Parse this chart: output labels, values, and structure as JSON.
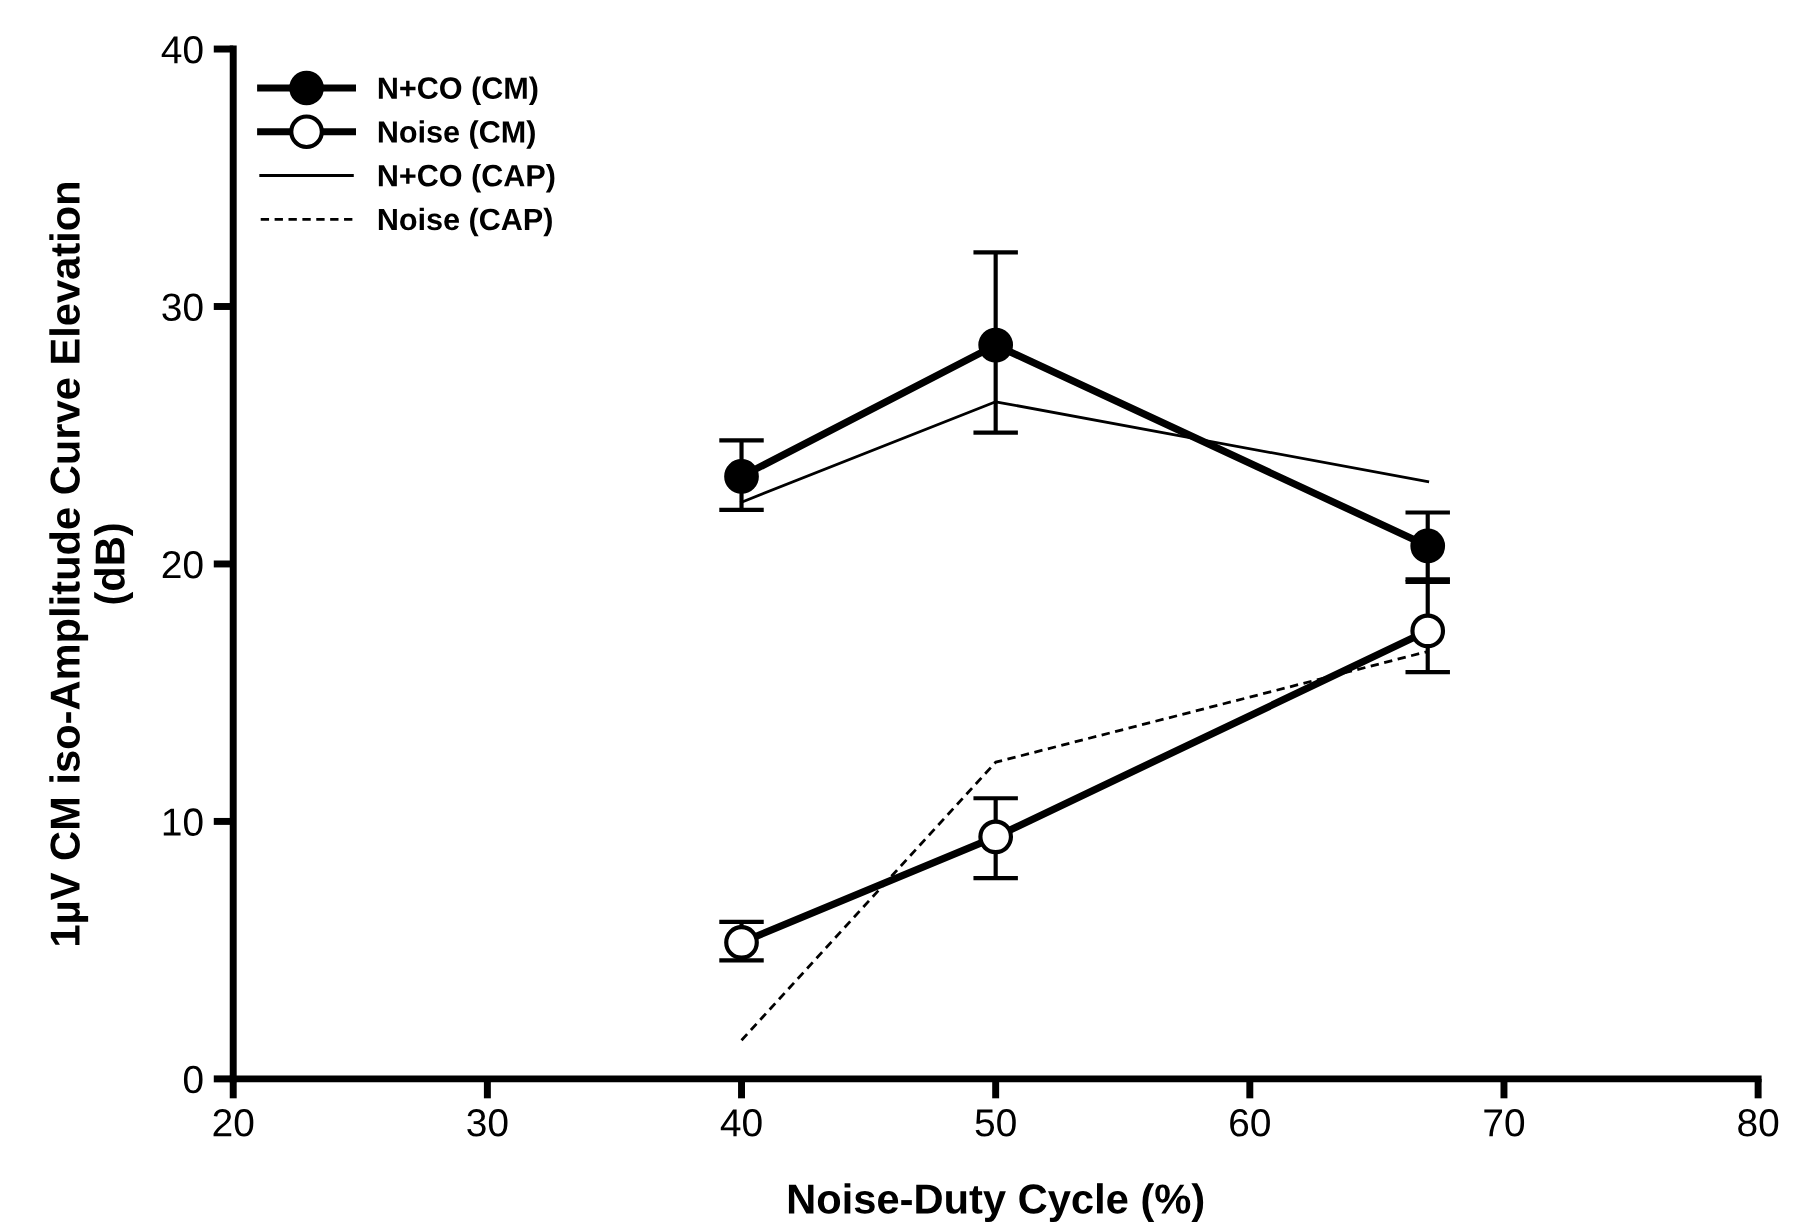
{
  "chart_data": {
    "type": "line",
    "xlabel": "Noise-Duty Cycle (%)",
    "ylabel": "1µV CM iso-Amplitude Curve Elevation\n(dB)",
    "x": [
      40,
      50,
      67
    ],
    "series": [
      {
        "name": "N+CO (CM)",
        "color": "#000000",
        "values": [
          23.4,
          28.5,
          20.7
        ],
        "errors": [
          [
            22.1,
            24.8
          ],
          [
            25.1,
            32.1
          ],
          [
            19.3,
            22.0
          ]
        ],
        "marker": "circle",
        "line_style": "solid"
      },
      {
        "name": "Noise (CM)",
        "color": "#000000",
        "values": [
          5.3,
          9.4,
          17.4
        ],
        "errors": [
          [
            4.6,
            6.1
          ],
          [
            7.8,
            10.9
          ],
          [
            15.8,
            19.4
          ]
        ],
        "marker": "circle",
        "line_style": "solid"
      },
      {
        "name": "N+CO (CAP)",
        "color": "#000000",
        "values": [
          22.4,
          26.3,
          23.2
        ],
        "marker": "none",
        "line_style": "solid"
      },
      {
        "name": "Noise (CAP)",
        "color": "#000000",
        "values": [
          1.5,
          12.3,
          16.6
        ],
        "marker": "none",
        "line_style": "dashed"
      }
    ],
    "xlim": [
      20,
      80
    ],
    "xticks": [
      20,
      30,
      40,
      50,
      60,
      70,
      80
    ],
    "ylim": [
      0,
      40
    ],
    "yticks": [
      0,
      10,
      20,
      30,
      40
    ],
    "grid": false,
    "legend": "top left"
  }
}
